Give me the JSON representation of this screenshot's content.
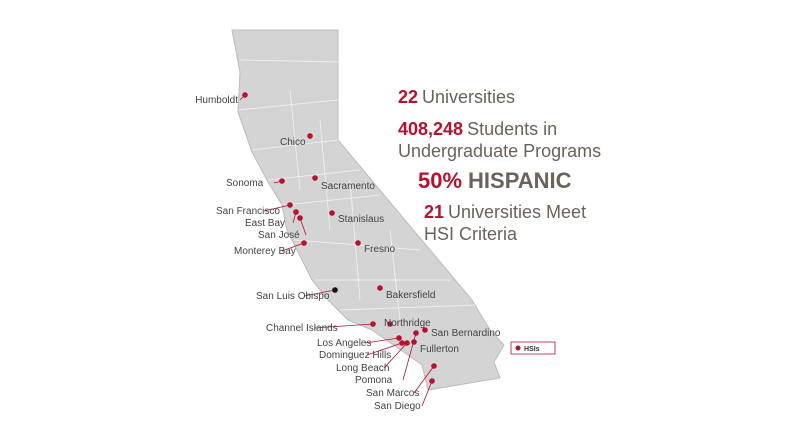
{
  "stats": [
    {
      "number": "22",
      "text": [
        "Universities"
      ]
    },
    {
      "number": "408,248",
      "text": [
        "Students in",
        "Undergraduate Programs"
      ]
    },
    {
      "number": "50%",
      "text": [
        "HISPANIC"
      ]
    },
    {
      "number": "21",
      "text": [
        "Universities Meet",
        "HSI Criteria"
      ]
    }
  ],
  "campuses": [
    "Humboldt",
    "Chico",
    "Sonoma",
    "Sacramento",
    "San Francisco",
    "East Bay",
    "San José",
    "Stanislaus",
    "Monterey Bay",
    "Fresno",
    "San Luis Obispo",
    "Bakersfield",
    "Northridge",
    "Channel Islands",
    "Los Angeles",
    "San Bernardino",
    "Dominguez Hills",
    "Fullerton",
    "Long Beach",
    "Pomona",
    "San Marcos",
    "San Diego"
  ],
  "legend": {
    "label": "HSIs"
  }
}
